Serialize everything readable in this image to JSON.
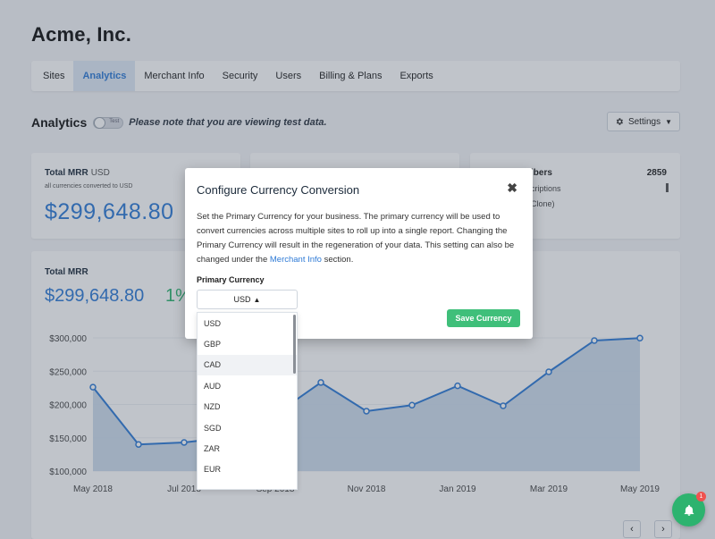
{
  "company": {
    "name": "Acme, Inc."
  },
  "tabs": [
    {
      "label": "Sites"
    },
    {
      "label": "Analytics",
      "active": true
    },
    {
      "label": "Merchant Info"
    },
    {
      "label": "Security"
    },
    {
      "label": "Users"
    },
    {
      "label": "Billing & Plans"
    },
    {
      "label": "Exports"
    }
  ],
  "analytics": {
    "title": "Analytics",
    "toggle_label": "Test",
    "test_note": "Please note that you are viewing test data.",
    "settings_label": "Settings"
  },
  "cards": {
    "mrr": {
      "label": "Total MRR",
      "currency": "USD",
      "sub": "all currencies converted to USD",
      "value": "$299,648.80"
    },
    "subscribers": {
      "label_partial": "ibers",
      "count": "2859",
      "line1": "criptions",
      "line2": "Clone)"
    }
  },
  "chart_panel": {
    "label": "Total MRR",
    "value": "$299,648.80",
    "pct": "1%"
  },
  "chart_data": {
    "type": "area",
    "x": [
      "May 2018",
      "Jun 2018",
      "Jul 2018",
      "Aug 2018",
      "Sep 2018",
      "Oct 2018",
      "Nov 2018",
      "Dec 2018",
      "Jan 2019",
      "Feb 2019",
      "Mar 2019",
      "Apr 2019",
      "May 2019"
    ],
    "x_tick_labels": [
      "May 2018",
      "Jul 2018",
      "Sep 2018",
      "Nov 2018",
      "Jan 2019",
      "Mar 2019",
      "May 2019"
    ],
    "series": [
      {
        "values": [
          226000,
          140000,
          143000,
          151000,
          185000,
          233000,
          190000,
          199000,
          228000,
          198000,
          249000,
          296000,
          299649
        ]
      }
    ],
    "y_ticks": [
      "$100,000",
      "$150,000",
      "$200,000",
      "$250,000",
      "$300,000"
    ],
    "ylim": [
      100000,
      300000
    ],
    "line_color": "#2f7bd6",
    "area_color": "#c9d9ec"
  },
  "modal": {
    "title": "Configure Currency Conversion",
    "body_before_link": "Set the Primary Currency for your business. The primary currency will be used to convert currencies across multiple sites to roll up into a single report. Changing the Primary Currency will result in the regeneration of your data. This setting can also be changed under the ",
    "link_text": "Merchant Info",
    "body_after_link": " section.",
    "primary_currency_label": "Primary Currency",
    "selected_currency": "USD",
    "save_label": "Save Currency"
  },
  "dropdown": {
    "options": [
      "USD",
      "GBP",
      "CAD",
      "AUD",
      "NZD",
      "SGD",
      "ZAR",
      "EUR"
    ],
    "hovered": "CAD"
  },
  "chat": {
    "badge": "1"
  },
  "colors": {
    "accent": "#2f7bd6",
    "success": "#3fbf7a",
    "positive": "#2db36f"
  }
}
